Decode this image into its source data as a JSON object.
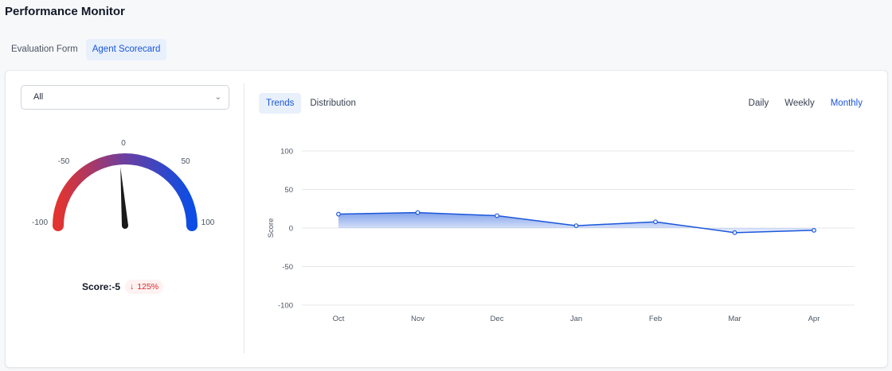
{
  "page_title": "Performance Monitor",
  "top_tabs": [
    {
      "label": "Evaluation Form",
      "active": false
    },
    {
      "label": "Agent Scorecard",
      "active": true
    }
  ],
  "filter": {
    "value": "All"
  },
  "gauge": {
    "min": -100,
    "max": 100,
    "value": -5,
    "tick_labels": [
      "-100",
      "-50",
      "0",
      "50",
      "100"
    ],
    "colors": {
      "low": "#e3342f",
      "mid": "#6b3fa0",
      "high": "#0b4de6",
      "needle": "#1a1a1a"
    }
  },
  "score": {
    "label": "Score:-5",
    "change_arrow": "↓",
    "change_text": "125%",
    "change_color": "#dc2626"
  },
  "view_tabs": [
    {
      "label": "Trends",
      "active": true
    },
    {
      "label": "Distribution",
      "active": false
    }
  ],
  "period_tabs": [
    {
      "label": "Daily",
      "active": false
    },
    {
      "label": "Weekly",
      "active": false
    },
    {
      "label": "Monthly",
      "active": true
    }
  ],
  "chart_data": {
    "type": "area",
    "categories": [
      "Oct",
      "Nov",
      "Dec",
      "Jan",
      "Feb",
      "Mar",
      "Apr"
    ],
    "series": [
      {
        "values": [
          18,
          20,
          16,
          3,
          8,
          -6,
          -3
        ],
        "color": "#1a56db"
      }
    ],
    "ylabel": "Score",
    "xlabel": "",
    "ylim": [
      -100,
      100
    ],
    "yticks": [
      100,
      50,
      0,
      -50,
      -100
    ],
    "grid": true
  }
}
